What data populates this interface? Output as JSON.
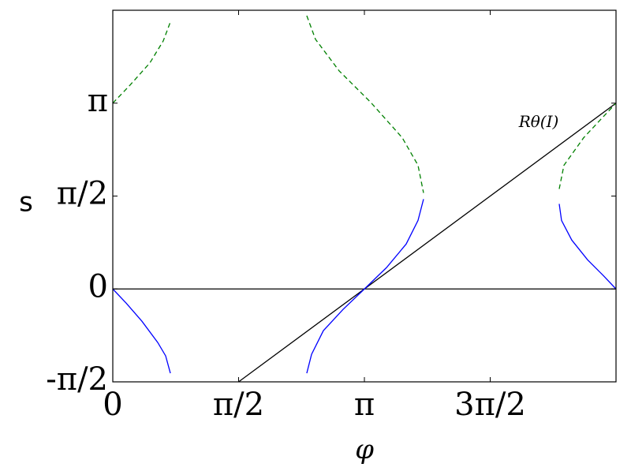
{
  "chart_data": {
    "type": "line",
    "xlabel": "φ",
    "ylabel": "s",
    "annotations": [
      {
        "text": "Rθ(I)",
        "x": 5.318,
        "y": 2.81
      }
    ],
    "xlim": [
      0,
      6.2832
    ],
    "ylim": [
      -1.5708,
      4.7124
    ],
    "xticks": [
      {
        "value": 0,
        "label": "0"
      },
      {
        "value": 1.5708,
        "label": "π/2"
      },
      {
        "value": 3.1416,
        "label": "π"
      },
      {
        "value": 4.7124,
        "label": "3π/2"
      }
    ],
    "yticks": [
      {
        "value": -1.5708,
        "label": "-π/2"
      },
      {
        "value": 0,
        "label": "0"
      },
      {
        "value": 1.5708,
        "label": "π/2"
      },
      {
        "value": 3.1416,
        "label": "π"
      }
    ],
    "series": [
      {
        "color": "#000000",
        "linestyle": "solid",
        "x": [
          0,
          6.2832
        ],
        "values": [
          0,
          0
        ]
      },
      {
        "color": "#000000",
        "linestyle": "solid",
        "x": [
          1.5708,
          6.2832
        ],
        "values": [
          -1.5708,
          3.1416
        ]
      },
      {
        "color": "#0000ff",
        "linestyle": "solid",
        "x": [
          0,
          0.167,
          0.364,
          0.561,
          0.66,
          0.719
        ],
        "values": [
          0,
          -0.24,
          -0.546,
          -0.905,
          -1.132,
          -1.425
        ]
      },
      {
        "color": "#0000ff",
        "linestyle": "solid",
        "x": [
          2.422,
          2.482,
          2.629,
          2.875,
          3.142,
          3.417,
          3.663,
          3.811,
          3.88
        ],
        "values": [
          -1.425,
          -1.105,
          -0.706,
          -0.346,
          0,
          0.36,
          0.759,
          1.158,
          1.518
        ]
      },
      {
        "color": "#0000ff",
        "linestyle": "solid",
        "x": [
          5.574,
          5.603,
          5.731,
          5.928,
          6.125,
          6.283
        ],
        "values": [
          1.438,
          1.158,
          0.826,
          0.493,
          0.226,
          0
        ]
      },
      {
        "color": "#008000",
        "linestyle": "dashed",
        "x": [
          0,
          0.217,
          0.463,
          0.63,
          0.719
        ],
        "values": [
          3.142,
          3.449,
          3.822,
          4.194,
          4.514
        ]
      },
      {
        "color": "#008000",
        "linestyle": "dashed",
        "x": [
          2.422,
          2.531,
          2.826,
          3.22,
          3.614,
          3.811,
          3.88
        ],
        "values": [
          4.621,
          4.221,
          3.688,
          3.156,
          2.557,
          2.091,
          1.624
        ]
      },
      {
        "color": "#008000",
        "linestyle": "dashed",
        "x": [
          5.574,
          5.633,
          5.879,
          6.283
        ],
        "values": [
          1.691,
          2.091,
          2.557,
          3.142
        ]
      }
    ]
  }
}
